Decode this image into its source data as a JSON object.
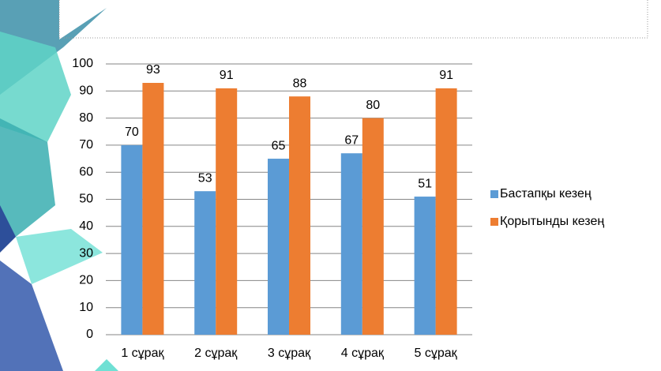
{
  "chart_data": {
    "type": "bar",
    "categories": [
      "1 сұрақ",
      "2 сұрақ",
      "3 сұрақ",
      "4 сұрақ",
      "5 сұрақ"
    ],
    "series": [
      {
        "name": "Бастапқы кезең",
        "color": "#5b9bd5",
        "values": [
          70,
          53,
          65,
          67,
          51
        ]
      },
      {
        "name": "Қорытынды кезең",
        "color": "#ed7d31",
        "values": [
          93,
          91,
          88,
          80,
          91
        ]
      }
    ],
    "ylim": [
      0,
      100
    ],
    "yticks": [
      0,
      10,
      20,
      30,
      40,
      50,
      60,
      70,
      80,
      90,
      100
    ],
    "grid": true,
    "legend": "right"
  }
}
